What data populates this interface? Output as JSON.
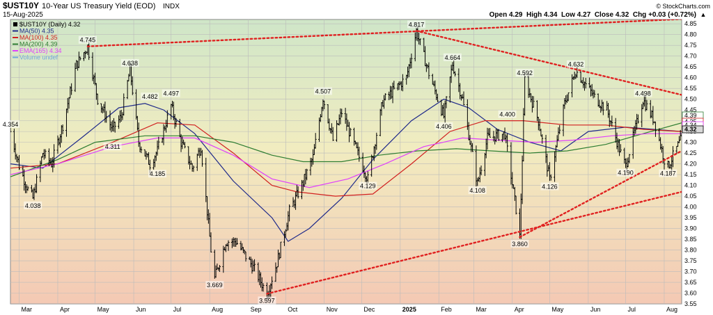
{
  "header": {
    "symbol": "$UST10Y",
    "description": "10-Year US Treasury Yield (EOD)",
    "exchange": "INDX",
    "date": "15-Aug-2025",
    "ohlc": "Open 4.29  High 4.34  Low 4.27  Close 4.32  Chg +0.03 (+0.72%)",
    "ohlc_arrow": "▲",
    "watermark": "© StockCharts.com"
  },
  "colors": {
    "ma50": "#1f2a8a",
    "ma100": "#d11f1f",
    "ma200": "#2e7d32",
    "ema165": "#e040fb",
    "volume": "#6fa8dc",
    "trend": "#e02020",
    "price": "#000000",
    "bg_top": "#cfe6c8",
    "bg_bottom": "#f4c9b4"
  },
  "legend": [
    {
      "key": "price",
      "label": "$UST10Y (Daily) 4.32",
      "marker": "square"
    },
    {
      "key": "ma50",
      "label": "MA(50) 4.35",
      "marker": "line"
    },
    {
      "key": "ma100",
      "label": "MA(100) 4.35",
      "marker": "line"
    },
    {
      "key": "ma200",
      "label": "MA(200) 4.39",
      "marker": "line"
    },
    {
      "key": "ema165",
      "label": "EMA(165) 4.34",
      "marker": "line"
    },
    {
      "key": "volume",
      "label": "Volume undef",
      "marker": "line"
    }
  ],
  "chart_data": {
    "type": "line",
    "title": "$UST10Y 10-Year US Treasury Yield (EOD) INDX",
    "ylim": [
      3.55,
      4.87
    ],
    "yscale": "linear",
    "grid": true,
    "legend_position": "top-left",
    "y_ticks": [
      3.55,
      3.6,
      3.65,
      3.7,
      3.75,
      3.8,
      3.85,
      3.9,
      3.95,
      4.0,
      4.05,
      4.1,
      4.15,
      4.2,
      4.25,
      4.3,
      4.35,
      4.4,
      4.45,
      4.5,
      4.55,
      4.6,
      4.65,
      4.7,
      4.75,
      4.8,
      4.85
    ],
    "x_range": [
      "2024-02-23",
      "2025-08-15"
    ],
    "x_ticks": [
      {
        "date": "2024-03-01",
        "label": "Mar",
        "bold": false
      },
      {
        "date": "2024-04-01",
        "label": "Apr",
        "bold": false
      },
      {
        "date": "2024-05-01",
        "label": "May",
        "bold": false
      },
      {
        "date": "2024-06-01",
        "label": "Jun",
        "bold": false
      },
      {
        "date": "2024-07-01",
        "label": "Jul",
        "bold": false
      },
      {
        "date": "2024-08-01",
        "label": "Aug",
        "bold": false
      },
      {
        "date": "2024-09-01",
        "label": "Sep",
        "bold": false
      },
      {
        "date": "2024-10-01",
        "label": "Oct",
        "bold": false
      },
      {
        "date": "2024-11-01",
        "label": "Nov",
        "bold": false
      },
      {
        "date": "2024-12-01",
        "label": "Dec",
        "bold": false
      },
      {
        "date": "2025-01-01",
        "label": "2025",
        "bold": true
      },
      {
        "date": "2025-02-01",
        "label": "Feb",
        "bold": false
      },
      {
        "date": "2025-03-01",
        "label": "Mar",
        "bold": false
      },
      {
        "date": "2025-04-01",
        "label": "Apr",
        "bold": false
      },
      {
        "date": "2025-05-01",
        "label": "May",
        "bold": false
      },
      {
        "date": "2025-06-01",
        "label": "Jun",
        "bold": false
      },
      {
        "date": "2025-07-01",
        "label": "Jul",
        "bold": false
      },
      {
        "date": "2025-08-01",
        "label": "Aug",
        "bold": false
      }
    ],
    "series": [
      {
        "key": "price",
        "name": "$UST10Y (Daily)",
        "points": [
          [
            "2024-02-23",
            4.35
          ],
          [
            "2024-03-01",
            4.19
          ],
          [
            "2024-03-08",
            4.08
          ],
          [
            "2024-03-12",
            4.04
          ],
          [
            "2024-03-20",
            4.25
          ],
          [
            "2024-03-27",
            4.2
          ],
          [
            "2024-04-05",
            4.38
          ],
          [
            "2024-04-16",
            4.66
          ],
          [
            "2024-04-25",
            4.745
          ],
          [
            "2024-05-03",
            4.5
          ],
          [
            "2024-05-15",
            4.36
          ],
          [
            "2024-05-22",
            4.42
          ],
          [
            "2024-05-29",
            4.638
          ],
          [
            "2024-06-05",
            4.3
          ],
          [
            "2024-06-14",
            4.2
          ],
          [
            "2024-06-20",
            4.26
          ],
          [
            "2024-07-01",
            4.47
          ],
          [
            "2024-07-09",
            4.3
          ],
          [
            "2024-07-18",
            4.18
          ],
          [
            "2024-07-25",
            4.28
          ],
          [
            "2024-08-02",
            3.8
          ],
          [
            "2024-08-05",
            3.669
          ],
          [
            "2024-08-14",
            3.84
          ],
          [
            "2024-08-22",
            3.84
          ],
          [
            "2024-09-06",
            3.71
          ],
          [
            "2024-09-16",
            3.597
          ],
          [
            "2024-09-24",
            3.74
          ],
          [
            "2024-10-04",
            3.98
          ],
          [
            "2024-10-14",
            4.1
          ],
          [
            "2024-10-23",
            4.23
          ],
          [
            "2024-10-31",
            4.507
          ],
          [
            "2024-11-08",
            4.31
          ],
          [
            "2024-11-15",
            4.44
          ],
          [
            "2024-11-25",
            4.29
          ],
          [
            "2024-12-06",
            4.129
          ],
          [
            "2024-12-18",
            4.49
          ],
          [
            "2025-01-06",
            4.6
          ],
          [
            "2025-01-14",
            4.817
          ],
          [
            "2025-01-24",
            4.62
          ],
          [
            "2025-02-05",
            4.42
          ],
          [
            "2025-02-12",
            4.664
          ],
          [
            "2025-02-20",
            4.5
          ],
          [
            "2025-03-04",
            4.108
          ],
          [
            "2025-03-12",
            4.32
          ],
          [
            "2025-03-26",
            4.34
          ],
          [
            "2025-04-04",
            3.99
          ],
          [
            "2025-04-07",
            3.86
          ],
          [
            "2025-04-11",
            4.592
          ],
          [
            "2025-04-22",
            4.4
          ],
          [
            "2025-05-01",
            4.126
          ],
          [
            "2025-05-13",
            4.48
          ],
          [
            "2025-05-22",
            4.632
          ],
          [
            "2025-06-06",
            4.51
          ],
          [
            "2025-06-16",
            4.45
          ],
          [
            "2025-06-27",
            4.25
          ],
          [
            "2025-07-01",
            4.19
          ],
          [
            "2025-07-15",
            4.498
          ],
          [
            "2025-07-24",
            4.4
          ],
          [
            "2025-08-01",
            4.22
          ],
          [
            "2025-08-04",
            4.187
          ],
          [
            "2025-08-15",
            4.32
          ]
        ]
      },
      {
        "key": "ma50",
        "name": "MA(50)",
        "points": [
          [
            "2024-02-23",
            4.2
          ],
          [
            "2024-03-20",
            4.18
          ],
          [
            "2024-04-20",
            4.32
          ],
          [
            "2024-05-20",
            4.46
          ],
          [
            "2024-06-10",
            4.48
          ],
          [
            "2024-06-25",
            4.45
          ],
          [
            "2024-07-20",
            4.34
          ],
          [
            "2024-08-20",
            4.12
          ],
          [
            "2024-09-20",
            3.95
          ],
          [
            "2024-10-03",
            3.84
          ],
          [
            "2024-10-20",
            3.9
          ],
          [
            "2024-11-15",
            4.04
          ],
          [
            "2024-12-10",
            4.22
          ],
          [
            "2025-01-10",
            4.4
          ],
          [
            "2025-02-05",
            4.5
          ],
          [
            "2025-02-25",
            4.46
          ],
          [
            "2025-03-20",
            4.36
          ],
          [
            "2025-04-15",
            4.3
          ],
          [
            "2025-05-10",
            4.26
          ],
          [
            "2025-06-01",
            4.35
          ],
          [
            "2025-07-01",
            4.37
          ],
          [
            "2025-08-15",
            4.35
          ]
        ]
      },
      {
        "key": "ma100",
        "name": "MA(100)",
        "points": [
          [
            "2024-02-23",
            4.18
          ],
          [
            "2024-04-01",
            4.2
          ],
          [
            "2024-05-15",
            4.3
          ],
          [
            "2024-06-20",
            4.39
          ],
          [
            "2024-07-20",
            4.38
          ],
          [
            "2024-08-20",
            4.25
          ],
          [
            "2024-09-20",
            4.1
          ],
          [
            "2024-10-10",
            4.07
          ],
          [
            "2024-11-10",
            4.05
          ],
          [
            "2024-12-10",
            4.06
          ],
          [
            "2025-01-10",
            4.2
          ],
          [
            "2025-02-10",
            4.35
          ],
          [
            "2025-03-10",
            4.4
          ],
          [
            "2025-04-10",
            4.4
          ],
          [
            "2025-05-15",
            4.38
          ],
          [
            "2025-06-15",
            4.38
          ],
          [
            "2025-07-15",
            4.36
          ],
          [
            "2025-08-15",
            4.35
          ]
        ]
      },
      {
        "key": "ma200",
        "name": "MA(200)",
        "points": [
          [
            "2024-02-23",
            4.14
          ],
          [
            "2024-04-01",
            4.22
          ],
          [
            "2024-05-01",
            4.3
          ],
          [
            "2024-06-10",
            4.33
          ],
          [
            "2024-07-20",
            4.33
          ],
          [
            "2024-08-20",
            4.3
          ],
          [
            "2024-09-20",
            4.24
          ],
          [
            "2024-10-15",
            4.21
          ],
          [
            "2024-11-15",
            4.21
          ],
          [
            "2024-12-15",
            4.24
          ],
          [
            "2025-01-15",
            4.26
          ],
          [
            "2025-02-15",
            4.27
          ],
          [
            "2025-03-15",
            4.26
          ],
          [
            "2025-04-15",
            4.25
          ],
          [
            "2025-05-15",
            4.26
          ],
          [
            "2025-06-15",
            4.29
          ],
          [
            "2025-07-15",
            4.34
          ],
          [
            "2025-08-15",
            4.39
          ]
        ]
      },
      {
        "key": "ema165",
        "name": "EMA(165)",
        "points": [
          [
            "2024-02-23",
            4.15
          ],
          [
            "2024-04-01",
            4.2
          ],
          [
            "2024-05-15",
            4.28
          ],
          [
            "2024-06-20",
            4.32
          ],
          [
            "2024-07-20",
            4.32
          ],
          [
            "2024-08-20",
            4.24
          ],
          [
            "2024-09-20",
            4.13
          ],
          [
            "2024-10-20",
            4.09
          ],
          [
            "2024-11-20",
            4.13
          ],
          [
            "2024-12-20",
            4.2
          ],
          [
            "2025-01-20",
            4.28
          ],
          [
            "2025-02-20",
            4.32
          ],
          [
            "2025-03-20",
            4.31
          ],
          [
            "2025-04-20",
            4.3
          ],
          [
            "2025-05-20",
            4.31
          ],
          [
            "2025-06-20",
            4.33
          ],
          [
            "2025-07-20",
            4.34
          ],
          [
            "2025-08-15",
            4.34
          ]
        ]
      }
    ],
    "trendlines": [
      {
        "name": "upper",
        "from": [
          "2024-04-25",
          4.745
        ],
        "to": [
          "2025-01-14",
          4.817
        ],
        "extend_to": [
          "2025-08-15",
          4.872
        ]
      },
      {
        "name": "upper-down",
        "from": [
          "2025-01-14",
          4.817
        ],
        "to": [
          "2025-08-15",
          4.52
        ]
      },
      {
        "name": "lower-1",
        "from": [
          "2024-09-16",
          3.597
        ],
        "to": [
          "2025-04-07",
          3.86
        ],
        "extend_to": [
          "2025-08-15",
          4.07
        ]
      },
      {
        "name": "lower-2",
        "from": [
          "2025-04-07",
          3.86
        ],
        "to": [
          "2025-08-15",
          4.26
        ]
      }
    ],
    "annotations": [
      {
        "date": "2024-02-23",
        "value": 4.354,
        "label": "4.354",
        "pos": "above"
      },
      {
        "date": "2024-03-12",
        "value": 4.038,
        "label": "4.038",
        "pos": "below"
      },
      {
        "date": "2024-04-25",
        "value": 4.745,
        "label": "4.745",
        "pos": "above"
      },
      {
        "date": "2024-05-29",
        "value": 4.638,
        "label": "4.638",
        "pos": "above"
      },
      {
        "date": "2024-06-14",
        "value": 4.482,
        "label": "4.482",
        "pos": "above"
      },
      {
        "date": "2024-05-15",
        "value": 4.311,
        "label": "4.311",
        "pos": "below"
      },
      {
        "date": "2024-07-01",
        "value": 4.497,
        "label": "4.497",
        "pos": "above"
      },
      {
        "date": "2024-06-20",
        "value": 4.185,
        "label": "4.185",
        "pos": "below"
      },
      {
        "date": "2024-08-05",
        "value": 3.669,
        "label": "3.669",
        "pos": "below"
      },
      {
        "date": "2024-09-16",
        "value": 3.597,
        "label": "3.597",
        "pos": "below"
      },
      {
        "date": "2024-10-31",
        "value": 4.507,
        "label": "4.507",
        "pos": "above"
      },
      {
        "date": "2024-12-06",
        "value": 4.129,
        "label": "4.129",
        "pos": "below"
      },
      {
        "date": "2025-01-14",
        "value": 4.817,
        "label": "4.817",
        "pos": "above"
      },
      {
        "date": "2025-02-12",
        "value": 4.664,
        "label": "4.664",
        "pos": "above"
      },
      {
        "date": "2025-02-05",
        "value": 4.406,
        "label": "4.406",
        "pos": "below"
      },
      {
        "date": "2025-03-04",
        "value": 4.108,
        "label": "4.108",
        "pos": "below"
      },
      {
        "date": "2025-03-28",
        "value": 4.4,
        "label": "4.400",
        "pos": "above"
      },
      {
        "date": "2025-04-11",
        "value": 4.592,
        "label": "4.592",
        "pos": "above"
      },
      {
        "date": "2025-04-07",
        "value": 3.86,
        "label": "3.860",
        "pos": "below"
      },
      {
        "date": "2025-05-01",
        "value": 4.126,
        "label": "4.126",
        "pos": "below"
      },
      {
        "date": "2025-05-22",
        "value": 4.632,
        "label": "4.632",
        "pos": "above"
      },
      {
        "date": "2025-07-01",
        "value": 4.19,
        "label": "4.190",
        "pos": "below"
      },
      {
        "date": "2025-07-15",
        "value": 4.498,
        "label": "4.498",
        "pos": "above"
      },
      {
        "date": "2025-08-04",
        "value": 4.187,
        "label": "4.187",
        "pos": "below"
      }
    ],
    "right_labels": [
      {
        "value": 4.39,
        "label": "4.39",
        "color": "#2e7d32"
      },
      {
        "value": 4.35,
        "label": "4.35",
        "color": "#d11f1f"
      },
      {
        "value": 4.34,
        "label": "4.34",
        "color": "#e040fb"
      },
      {
        "value": 4.32,
        "label": "4.32",
        "color": "#000000"
      }
    ]
  }
}
